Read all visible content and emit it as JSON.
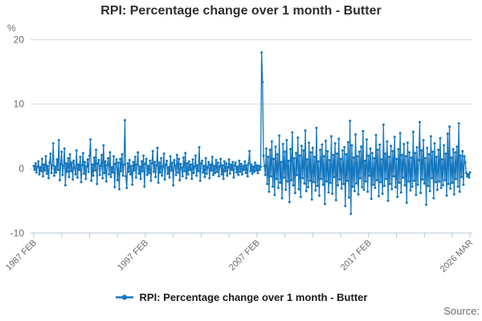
{
  "title": "RPI: Percentage change over 1 month - Butter",
  "legend": {
    "label": "RPI: Percentage change over 1 month - Butter"
  },
  "source": {
    "label": "Source:"
  },
  "colors": {
    "line": "#1577be",
    "grid": "#d9d9d9",
    "axis": "#b9c6d9",
    "label_text": "#6b6b6b",
    "title_text": "#2e2e2e"
  },
  "y_axis": {
    "unit": "%",
    "tick_values": [
      20,
      10,
      0,
      -10
    ]
  },
  "x_axis": {
    "labels": [
      {
        "label": "1987 FEB",
        "month": 0
      },
      {
        "label": "1997 FEB",
        "month": 120
      },
      {
        "label": "2007 FEB",
        "month": 240
      },
      {
        "label": "2017 FEB",
        "month": 360
      },
      {
        "label": "2026 MAR",
        "month": 469
      }
    ],
    "minor_tick_every_months": 30
  },
  "chart_data": {
    "type": "line",
    "title": "RPI: Percentage change over 1 month - Butter",
    "ylabel": "%",
    "ylim": [
      -10,
      20
    ],
    "x_start": "1987 FEB",
    "x_end": "2026 MAR",
    "x_unit": "month",
    "x_tick_labels": [
      "1987 FEB",
      "1997 FEB",
      "2007 FEB",
      "2017 FEB",
      "2026 MAR"
    ],
    "grid": "horizontal",
    "legend_position": "bottom",
    "marker": "dot",
    "values": [
      0.4,
      -0.2,
      0.8,
      -0.6,
      0.3,
      1.1,
      -0.9,
      0.2,
      -0.4,
      1.5,
      -1.2,
      0.6,
      -0.3,
      1.9,
      -0.8,
      0.4,
      -1.5,
      0.9,
      2.3,
      -0.7,
      0.5,
      3.9,
      -1.1,
      0.3,
      -0.6,
      1.4,
      -0.2,
      4.4,
      -1.8,
      0.7,
      2.6,
      -1.0,
      0.4,
      3.1,
      -2.6,
      0.8,
      -0.5,
      1.6,
      -1.3,
      2.2,
      -0.4,
      0.9,
      -1.7,
      1.2,
      0.1,
      -0.9,
      2.8,
      -1.4,
      0.6,
      -0.2,
      1.8,
      -2.1,
      0.5,
      2.4,
      -0.8,
      1.0,
      -1.6,
      0.3,
      1.4,
      -0.5,
      2.0,
      4.5,
      -1.9,
      0.6,
      -1.1,
      1.7,
      -0.3,
      2.9,
      -2.4,
      0.8,
      1.3,
      -1.0,
      0.4,
      2.1,
      -1.5,
      3.6,
      -0.7,
      1.1,
      -2.0,
      0.5,
      1.6,
      -0.9,
      2.5,
      -1.3,
      0.2,
      -0.6,
      1.9,
      -2.9,
      0.7,
      1.4,
      -1.8,
      0.9,
      -3.2,
      1.5,
      -0.4,
      2.2,
      -1.1,
      0.6,
      7.5,
      -1.2,
      -3.0,
      0.8,
      -0.5,
      1.3,
      -0.9,
      0.4,
      -2.5,
      1.0,
      -0.3,
      1.8,
      -1.4,
      0.6,
      2.5,
      -0.8,
      0.3,
      -1.6,
      1.1,
      -0.4,
      2.0,
      -2.8,
      0.7,
      1.5,
      -1.0,
      0.4,
      -0.7,
      1.2,
      -1.9,
      0.8,
      2.7,
      -0.5,
      1.0,
      -1.3,
      0.5,
      3.2,
      -2.2,
      0.9,
      -0.6,
      1.6,
      -1.1,
      0.3,
      2.3,
      -1.7,
      0.6,
      1.2,
      -0.8,
      0.2,
      -1.4,
      1.9,
      -0.3,
      0.9,
      -2.6,
      1.3,
      0.4,
      -1.0,
      2.1,
      -0.6,
      1.5,
      -1.8,
      0.7,
      0.1,
      -1.2,
      1.7,
      -0.4,
      2.4,
      -1.5,
      0.8,
      -0.9,
      1.1,
      -0.2,
      0.6,
      -1.6,
      1.4,
      -0.7,
      0.3,
      2.0,
      -1.1,
      0.5,
      -0.4,
      3.3,
      -1.9,
      0.8,
      1.2,
      -0.6,
      0.4,
      -1.3,
      1.6,
      -0.8,
      0.2,
      1.0,
      -1.5,
      0.6,
      -0.3,
      1.8,
      -1.0,
      0.4,
      -0.7,
      1.3,
      -0.5,
      0.9,
      -1.2,
      0.3,
      1.5,
      -0.9,
      0.5,
      -1.6,
      1.1,
      -0.4,
      0.8,
      -1.1,
      0.2,
      1.4,
      -0.8,
      0.6,
      -0.2,
      1.0,
      -1.4,
      0.5,
      0.9,
      -0.6,
      0.3,
      -1.0,
      1.2,
      -0.5,
      0.7,
      -0.9,
      0.4,
      -0.2,
      1.1,
      -0.7,
      0.5,
      -1.2,
      0.8,
      2.7,
      -0.4,
      0.6,
      -0.8,
      0.3,
      -0.5,
      0.9,
      -0.3,
      0.5,
      -0.7,
      0.4,
      -0.2,
      0.3,
      18.0,
      13.4,
      2.0,
      0.4,
      -1.0,
      3.1,
      -2.4,
      1.8,
      -3.6,
      2.9,
      -1.2,
      4.2,
      -2.8,
      1.5,
      -4.1,
      3.4,
      -1.6,
      2.2,
      -3.0,
      5.1,
      -2.2,
      1.0,
      -4.6,
      3.8,
      -1.4,
      2.6,
      -3.3,
      4.4,
      -2.0,
      1.2,
      -5.2,
      3.0,
      -1.8,
      5.6,
      -2.6,
      1.6,
      -3.8,
      2.4,
      -1.0,
      4.8,
      -3.2,
      2.0,
      -4.4,
      3.5,
      -1.5,
      2.8,
      -2.3,
      5.9,
      -3.5,
      1.4,
      -2.9,
      4.0,
      -1.9,
      2.5,
      -4.8,
      3.2,
      -2.1,
      1.8,
      -3.4,
      6.3,
      -2.7,
      1.1,
      -4.2,
      2.9,
      -1.6,
      3.7,
      -2.5,
      1.9,
      -5.5,
      4.3,
      -2.0,
      2.7,
      -3.7,
      1.3,
      -2.2,
      5.0,
      -3.9,
      2.1,
      -1.3,
      3.9,
      -4.9,
      2.3,
      -2.6,
      4.6,
      -1.7,
      1.5,
      -3.1,
      2.8,
      -2.4,
      3.3,
      -5.8,
      2.2,
      -1.9,
      4.1,
      -4.5,
      7.4,
      -7.0,
      3.6,
      -2.8,
      1.7,
      -3.5,
      5.3,
      -2.3,
      1.9,
      -4.0,
      2.6,
      -1.5,
      3.4,
      -2.9,
      5.8,
      -3.3,
      1.2,
      -2.0,
      4.5,
      -3.6,
      2.0,
      -1.1,
      3.1,
      -4.7,
      2.4,
      -2.5,
      1.6,
      -3.0,
      5.2,
      -1.8,
      2.9,
      -4.3,
      3.7,
      -2.1,
      1.4,
      -3.9,
      6.8,
      -2.7,
      2.3,
      -1.6,
      4.2,
      -5.0,
      1.8,
      -2.4,
      3.5,
      -3.2,
      2.7,
      -1.2,
      4.9,
      -2.9,
      1.5,
      -4.4,
      3.0,
      -2.2,
      5.5,
      -3.7,
      2.1,
      -1.4,
      3.8,
      -2.6,
      1.9,
      -5.3,
      4.0,
      -2.0,
      2.5,
      -3.4,
      1.7,
      -2.8,
      5.7,
      -1.9,
      2.4,
      -4.1,
      3.3,
      -2.5,
      1.3,
      7.2,
      -3.8,
      2.8,
      -1.7,
      4.4,
      -2.3,
      1.6,
      -5.6,
      3.2,
      -2.7,
      2.2,
      -3.5,
      5.0,
      -1.5,
      2.6,
      -4.6,
      3.9,
      -2.1,
      1.8,
      -3.3,
      2.9,
      -2.0,
      4.7,
      -3.0,
      1.4,
      -2.6,
      3.6,
      -1.8,
      2.3,
      -4.2,
      5.4,
      -2.4,
      6.5,
      -3.1,
      1.7,
      -2.2,
      3.0,
      -4.0,
      2.5,
      -1.6,
      3.4,
      -2.8,
      7.0,
      -3.6,
      2.0,
      -1.3,
      2.7,
      -2.5,
      1.9,
      0.9,
      -0.7,
      -1.2,
      -0.9,
      -1.4,
      -0.6
    ]
  }
}
